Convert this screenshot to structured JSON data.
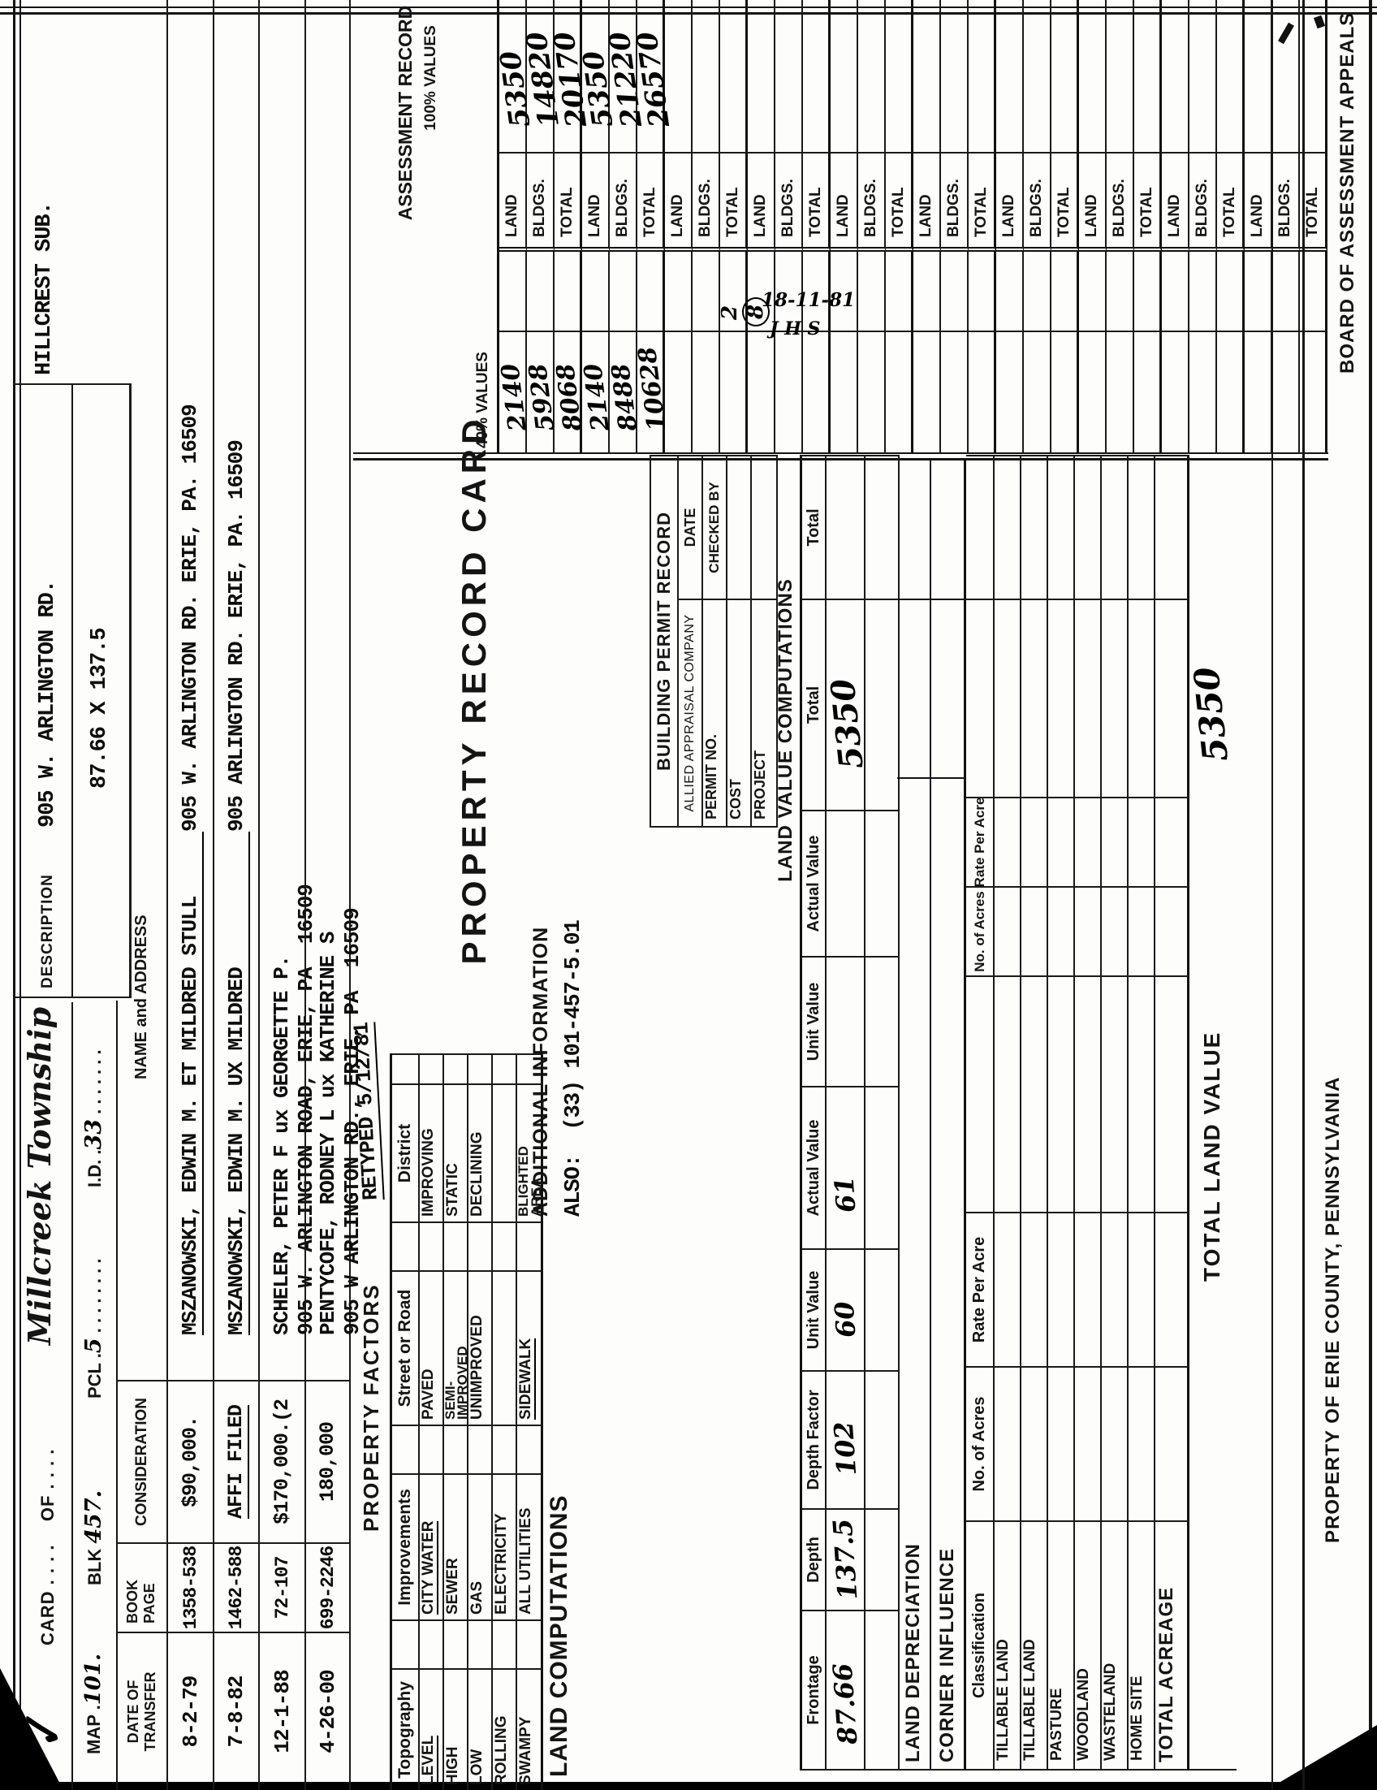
{
  "header": {
    "check_mark": "✓",
    "card_line": "CARD . . . .    OF . . . .",
    "township": "Millcreek Township",
    "map_label": "MAP .",
    "map_value": "101.",
    "blk_label": "BLK",
    "blk_value": "457.",
    "pcl_label": "PCL .",
    "pcl_value": "5",
    "pcl_dots": ". . . . . . . .",
    "id_label": "I.D. .",
    "id_value": "33",
    "id_dots": ". . . . . . .",
    "description_label": "DESCRIPTION",
    "description_value": "905 W. ARLINGTON RD.",
    "subdivision": "HILLCREST SUB.",
    "dimensions": "87.66 X 137.5"
  },
  "transfer": {
    "headers": {
      "date1": "DATE OF",
      "date2": "TRANSFER",
      "book1": "BOOK",
      "book2": "PAGE",
      "consideration": "CONSIDERATION",
      "name": "NAME and ADDRESS"
    },
    "rows": [
      {
        "date": "8-2-79",
        "book": "1358-538",
        "consideration": "$90,000.",
        "name_main": "MSZANOWSKI, EDWIN M. ET MILDRED STULL",
        "name_addr": "905 W. ARLINGTON RD. ERIE, PA. 16509"
      },
      {
        "date": "7-8-82",
        "book": "1462-588",
        "consideration": "AFFI FILED",
        "name_main": "MSZANOWSKI, EDWIN M. UX MILDRED",
        "name_addr": "905 ARLINGTON RD. ERIE, PA. 16509"
      },
      {
        "date": "12-1-88",
        "book": "72-107",
        "consideration": "$170,000.(2",
        "name_main": "SCHELER, PETER F ux GEORGETTE P.",
        "name_addr": "905 W. ARLINGTON ROAD, ERIE, PA  16509"
      },
      {
        "date": "4-26-00",
        "book": "699-2246",
        "consideration": "180,000",
        "name_main": "PENTYCOFE, RODNEY L ux KATHERINE S",
        "name_addr": "905 W ARLINGTON RD., ERIE, PA  16509"
      }
    ]
  },
  "factors": {
    "title": "PROPERTY FACTORS",
    "note": "RETYPED 5/12/81",
    "headers": [
      "Topography",
      "Improvements",
      "Street or Road",
      "District"
    ],
    "topography": [
      "LEVEL",
      "HIGH",
      "LOW",
      "ROLLING",
      "SWAMPY"
    ],
    "improvements": [
      "CITY WATER",
      "SEWER",
      "GAS",
      "ELECTRICITY",
      "ALL UTILITIES"
    ],
    "street": [
      "PAVED",
      "SEMI-\nIMPROVED",
      "UNIMPROVED",
      "",
      "SIDEWALK"
    ],
    "district": [
      "IMPROVING",
      "STATIC",
      "DECLINING",
      "",
      "BLIGHTED\n      AREA"
    ]
  },
  "land_computations_label": "LAND COMPUTATIONS",
  "title": "PROPERTY RECORD CARD",
  "additional_info": {
    "heading": "ADDITIONAL INFORMATION",
    "line": "ALSO:  (33) 101-457-5.01"
  },
  "permits": {
    "title": "BUILDING PERMIT RECORD",
    "company": "ALLIED APPRAISAL COMPANY",
    "permit_no": "PERMIT NO.",
    "cost": "COST",
    "project": "PROJECT",
    "date": "DATE",
    "checked_by": "CHECKED BY"
  },
  "lvc": {
    "title": "LAND VALUE COMPUTATIONS",
    "headers": [
      "Frontage",
      "Depth",
      "Depth Factor",
      "Unit Value",
      "Actual Value",
      "Unit Value",
      "Actual Value",
      "Total",
      "Total"
    ],
    "values": [
      "87.66",
      "137.5",
      "102",
      "60",
      "61",
      "",
      "",
      "5350",
      ""
    ]
  },
  "land_depreciation_label": "LAND DEPRECIATION",
  "corner_influence_label": "CORNER INFLUENCE",
  "classification": {
    "headers": [
      "Classification",
      "No. of Acres",
      "Rate Per Acre",
      "",
      "No. of Acres",
      "Rate Per Acre",
      "",
      ""
    ],
    "rows": [
      "TILLABLE LAND",
      "TILLABLE LAND",
      "PASTURE",
      "WOODLAND",
      "WASTELAND",
      "HOME SITE"
    ],
    "total_acreage_label": "TOTAL ACREAGE"
  },
  "total_land_value": {
    "label": "TOTAL LAND VALUE",
    "value": "5350"
  },
  "assessment": {
    "title": "ASSESSMENT RECORD",
    "col_100": "100% VALUES",
    "col_40": "40% VALUES",
    "row_labels": [
      "LAND",
      "BLDGS.",
      "TOTAL"
    ],
    "groups": [
      {
        "v40": [
          "2140",
          "5928",
          "8068"
        ],
        "v100": [
          "5350",
          "14820",
          "20170"
        ]
      },
      {
        "v40": [
          "2140",
          "8488",
          "10628"
        ],
        "v100": [
          "5350",
          "21220",
          "26570"
        ]
      },
      {
        "v40": [
          "",
          "",
          ""
        ],
        "v100": [
          "",
          "",
          ""
        ]
      },
      {
        "v40": [
          "",
          "",
          ""
        ],
        "v100": [
          "",
          "",
          ""
        ]
      },
      {
        "v40": [
          "",
          "",
          ""
        ],
        "v100": [
          "",
          "",
          ""
        ]
      },
      {
        "v40": [
          "",
          "",
          ""
        ],
        "v100": [
          "",
          "",
          ""
        ]
      },
      {
        "v40": [
          "",
          "",
          ""
        ],
        "v100": [
          "",
          "",
          ""
        ]
      },
      {
        "v40": [
          "",
          "",
          ""
        ],
        "v100": [
          "",
          "",
          ""
        ]
      },
      {
        "v40": [
          "",
          "",
          ""
        ],
        "v100": [
          "",
          "",
          ""
        ]
      },
      {
        "v40": [
          "",
          "",
          ""
        ],
        "v100": [
          "",
          "",
          ""
        ]
      }
    ],
    "notes": {
      "digit_a": "2",
      "digit_b": "8",
      "date_note": "18-11-81",
      "initials": "J H S"
    }
  },
  "footer": {
    "left": "PROPERTY OF ERIE COUNTY, PENNSYLVANIA",
    "right": "BOARD OF ASSESSMENT APPEALS"
  }
}
